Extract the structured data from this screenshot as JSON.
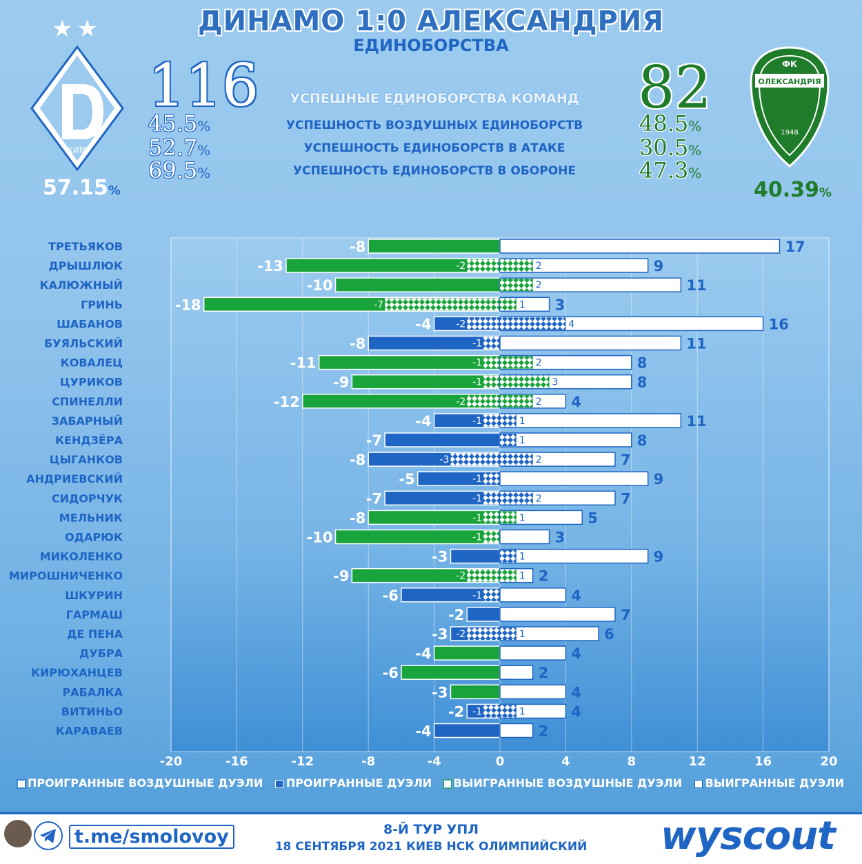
{
  "header": {
    "title": "ДИНАМО 1:0 АЛЕКСАНДРИЯ",
    "subtitle": "ЕДИНОБОРСТВА"
  },
  "home": {
    "total": "116",
    "air": "45.5",
    "attack": "52.7",
    "defense": "69.5",
    "team_pct": "57.15",
    "logo_text": "КИЇВ",
    "color": "#1f65c4"
  },
  "away": {
    "total": "82",
    "air": "48.5",
    "attack": "30.5",
    "defense": "47.3",
    "team_pct": "40.39",
    "logo_text_top": "ФК",
    "logo_text_mid": "ОЛЕКСАНДРІЯ",
    "logo_year": "1948",
    "color": "#1e7c2a"
  },
  "labels": {
    "total": "УСПЕШНЫЕ ЕДИНОБОРСТВА КОМАНД",
    "air": "УСПЕШНОСТЬ ВОЗДУШНЫХ ЕДИНОБОРСТВ",
    "attack": "УСПЕШНОСТЬ ЕДИНОБОРСТВ В АТАКЕ",
    "defense": "УСПЕШНОСТЬ ЕДИНОБОРСТВ В ОБОРОНЕ",
    "percent_sign": "%"
  },
  "chart_data": {
    "type": "bar",
    "orientation": "horizontal-diverging",
    "xlim": [
      -20,
      20
    ],
    "xticks": [
      -20,
      -16,
      -12,
      -8,
      -4,
      0,
      4,
      8,
      12,
      16,
      20
    ],
    "categories": [
      "ТРЕТЬЯКОВ",
      "ДРЫШЛЮК",
      "КАЛЮЖНЫЙ",
      "ГРИНЬ",
      "ШАБАНОВ",
      "БУЯЛЬСКИЙ",
      "КОВАЛЕЦ",
      "ЦУРИКОВ",
      "СПИНЕЛЛИ",
      "ЗАБАРНЫЙ",
      "КЕНДЗЁРА",
      "ЦЫГАНКОВ",
      "АНДРИЕВСКИЙ",
      "СИДОРЧУК",
      "МЕЛЬНИК",
      "ОДАРЮК",
      "МИКОЛЕНКО",
      "МИРОШНИЧЕНКО",
      "ШКУРИН",
      "ГАРМАШ",
      "ДЕ ПЕНА",
      "ДУБРА",
      "КИРЮХАНЦЕВ",
      "РАБАЛКА",
      "ВИТИНЬО",
      "КАРАВАЕВ"
    ],
    "series": [
      {
        "name": "ПРОИГРАННЫЕ ВОЗДУШНЫЕ ДУЭЛИ",
        "values": [
          0,
          -2,
          0,
          -7,
          -2,
          -1,
          -1,
          -1,
          -2,
          -1,
          0,
          -3,
          -1,
          -1,
          -1,
          -1,
          0,
          -2,
          -1,
          0,
          -2,
          0,
          0,
          0,
          -1,
          0
        ]
      },
      {
        "name": "ПРОИГРАННЫЕ ДУЭЛИ",
        "values": [
          -8,
          -13,
          -10,
          -18,
          -4,
          -8,
          -11,
          -9,
          -12,
          -4,
          -7,
          -8,
          -5,
          -7,
          -8,
          -10,
          -3,
          -9,
          -6,
          -2,
          -3,
          -4,
          -6,
          -3,
          -2,
          -4
        ]
      },
      {
        "name": "ВЫИГРАННЫЕ ВОЗДУШНЫЕ ДУЭЛИ",
        "values": [
          0,
          2,
          2,
          1,
          4,
          0,
          2,
          3,
          2,
          1,
          1,
          2,
          0,
          2,
          1,
          0,
          1,
          1,
          0,
          0,
          1,
          0,
          0,
          0,
          1,
          0
        ]
      },
      {
        "name": "ВЫИГРАННЫЕ ДУЭЛИ",
        "values": [
          17,
          9,
          11,
          3,
          16,
          11,
          8,
          8,
          4,
          11,
          8,
          7,
          9,
          7,
          5,
          3,
          9,
          2,
          4,
          7,
          6,
          4,
          2,
          4,
          4,
          2
        ]
      }
    ],
    "bar_colors": [
      "green",
      "green",
      "green",
      "green",
      "blue",
      "blue",
      "green",
      "green",
      "green",
      "blue",
      "blue",
      "blue",
      "blue",
      "blue",
      "green",
      "green",
      "blue",
      "green",
      "blue",
      "blue",
      "blue",
      "green",
      "green",
      "green",
      "blue",
      "blue"
    ],
    "colors": {
      "green": "#18a43a",
      "blue": "#1f65c4",
      "white": "#ffffff"
    },
    "legend_position": "bottom"
  },
  "footer": {
    "telegram": "t.me/smolovoy",
    "round": "8-Й ТУР УПЛ",
    "date_venue": "18 СЕНТЯБРЯ 2021 КИЕВ НСК ОЛИМПИЙСКИЙ",
    "brand": "wyscout"
  }
}
